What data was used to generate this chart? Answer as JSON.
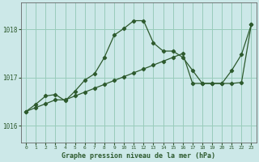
{
  "title": "Graphe pression niveau de la mer (hPa)",
  "xticks": [
    0,
    1,
    2,
    3,
    4,
    5,
    6,
    7,
    8,
    9,
    10,
    11,
    12,
    13,
    14,
    15,
    16,
    17,
    18,
    19,
    20,
    21,
    22,
    23
  ],
  "yticks": [
    1016,
    1017,
    1018
  ],
  "ylim": [
    1015.65,
    1018.55
  ],
  "xlim": [
    -0.5,
    23.5
  ],
  "background_color": "#cce8e8",
  "grid_color": "#99ccbb",
  "line_color": "#2d5a2d",
  "series1_x": [
    0,
    1,
    2,
    3,
    4,
    5,
    6,
    7,
    8,
    9,
    10,
    11,
    12,
    13,
    14,
    15,
    16,
    17,
    18,
    19,
    20,
    21,
    22,
    23
  ],
  "series1_y": [
    1016.3,
    1016.38,
    1016.46,
    1016.54,
    1016.54,
    1016.62,
    1016.7,
    1016.78,
    1016.86,
    1016.94,
    1017.02,
    1017.1,
    1017.18,
    1017.26,
    1017.34,
    1017.42,
    1017.5,
    1016.88,
    1016.88,
    1016.88,
    1016.88,
    1016.88,
    1016.9,
    1018.1
  ],
  "series2_x": [
    0,
    1,
    2,
    3,
    4,
    5,
    6,
    7,
    8,
    9,
    10,
    11,
    12,
    13,
    14,
    15,
    16,
    17,
    18,
    19,
    20,
    21,
    22,
    23
  ],
  "series2_y": [
    1016.3,
    1016.45,
    1016.62,
    1016.65,
    1016.52,
    1016.72,
    1016.95,
    1017.08,
    1017.42,
    1017.88,
    1018.02,
    1018.18,
    1018.18,
    1017.72,
    1017.55,
    1017.55,
    1017.42,
    1017.15,
    1016.88,
    1016.88,
    1016.88,
    1017.15,
    1017.48,
    1018.1
  ]
}
